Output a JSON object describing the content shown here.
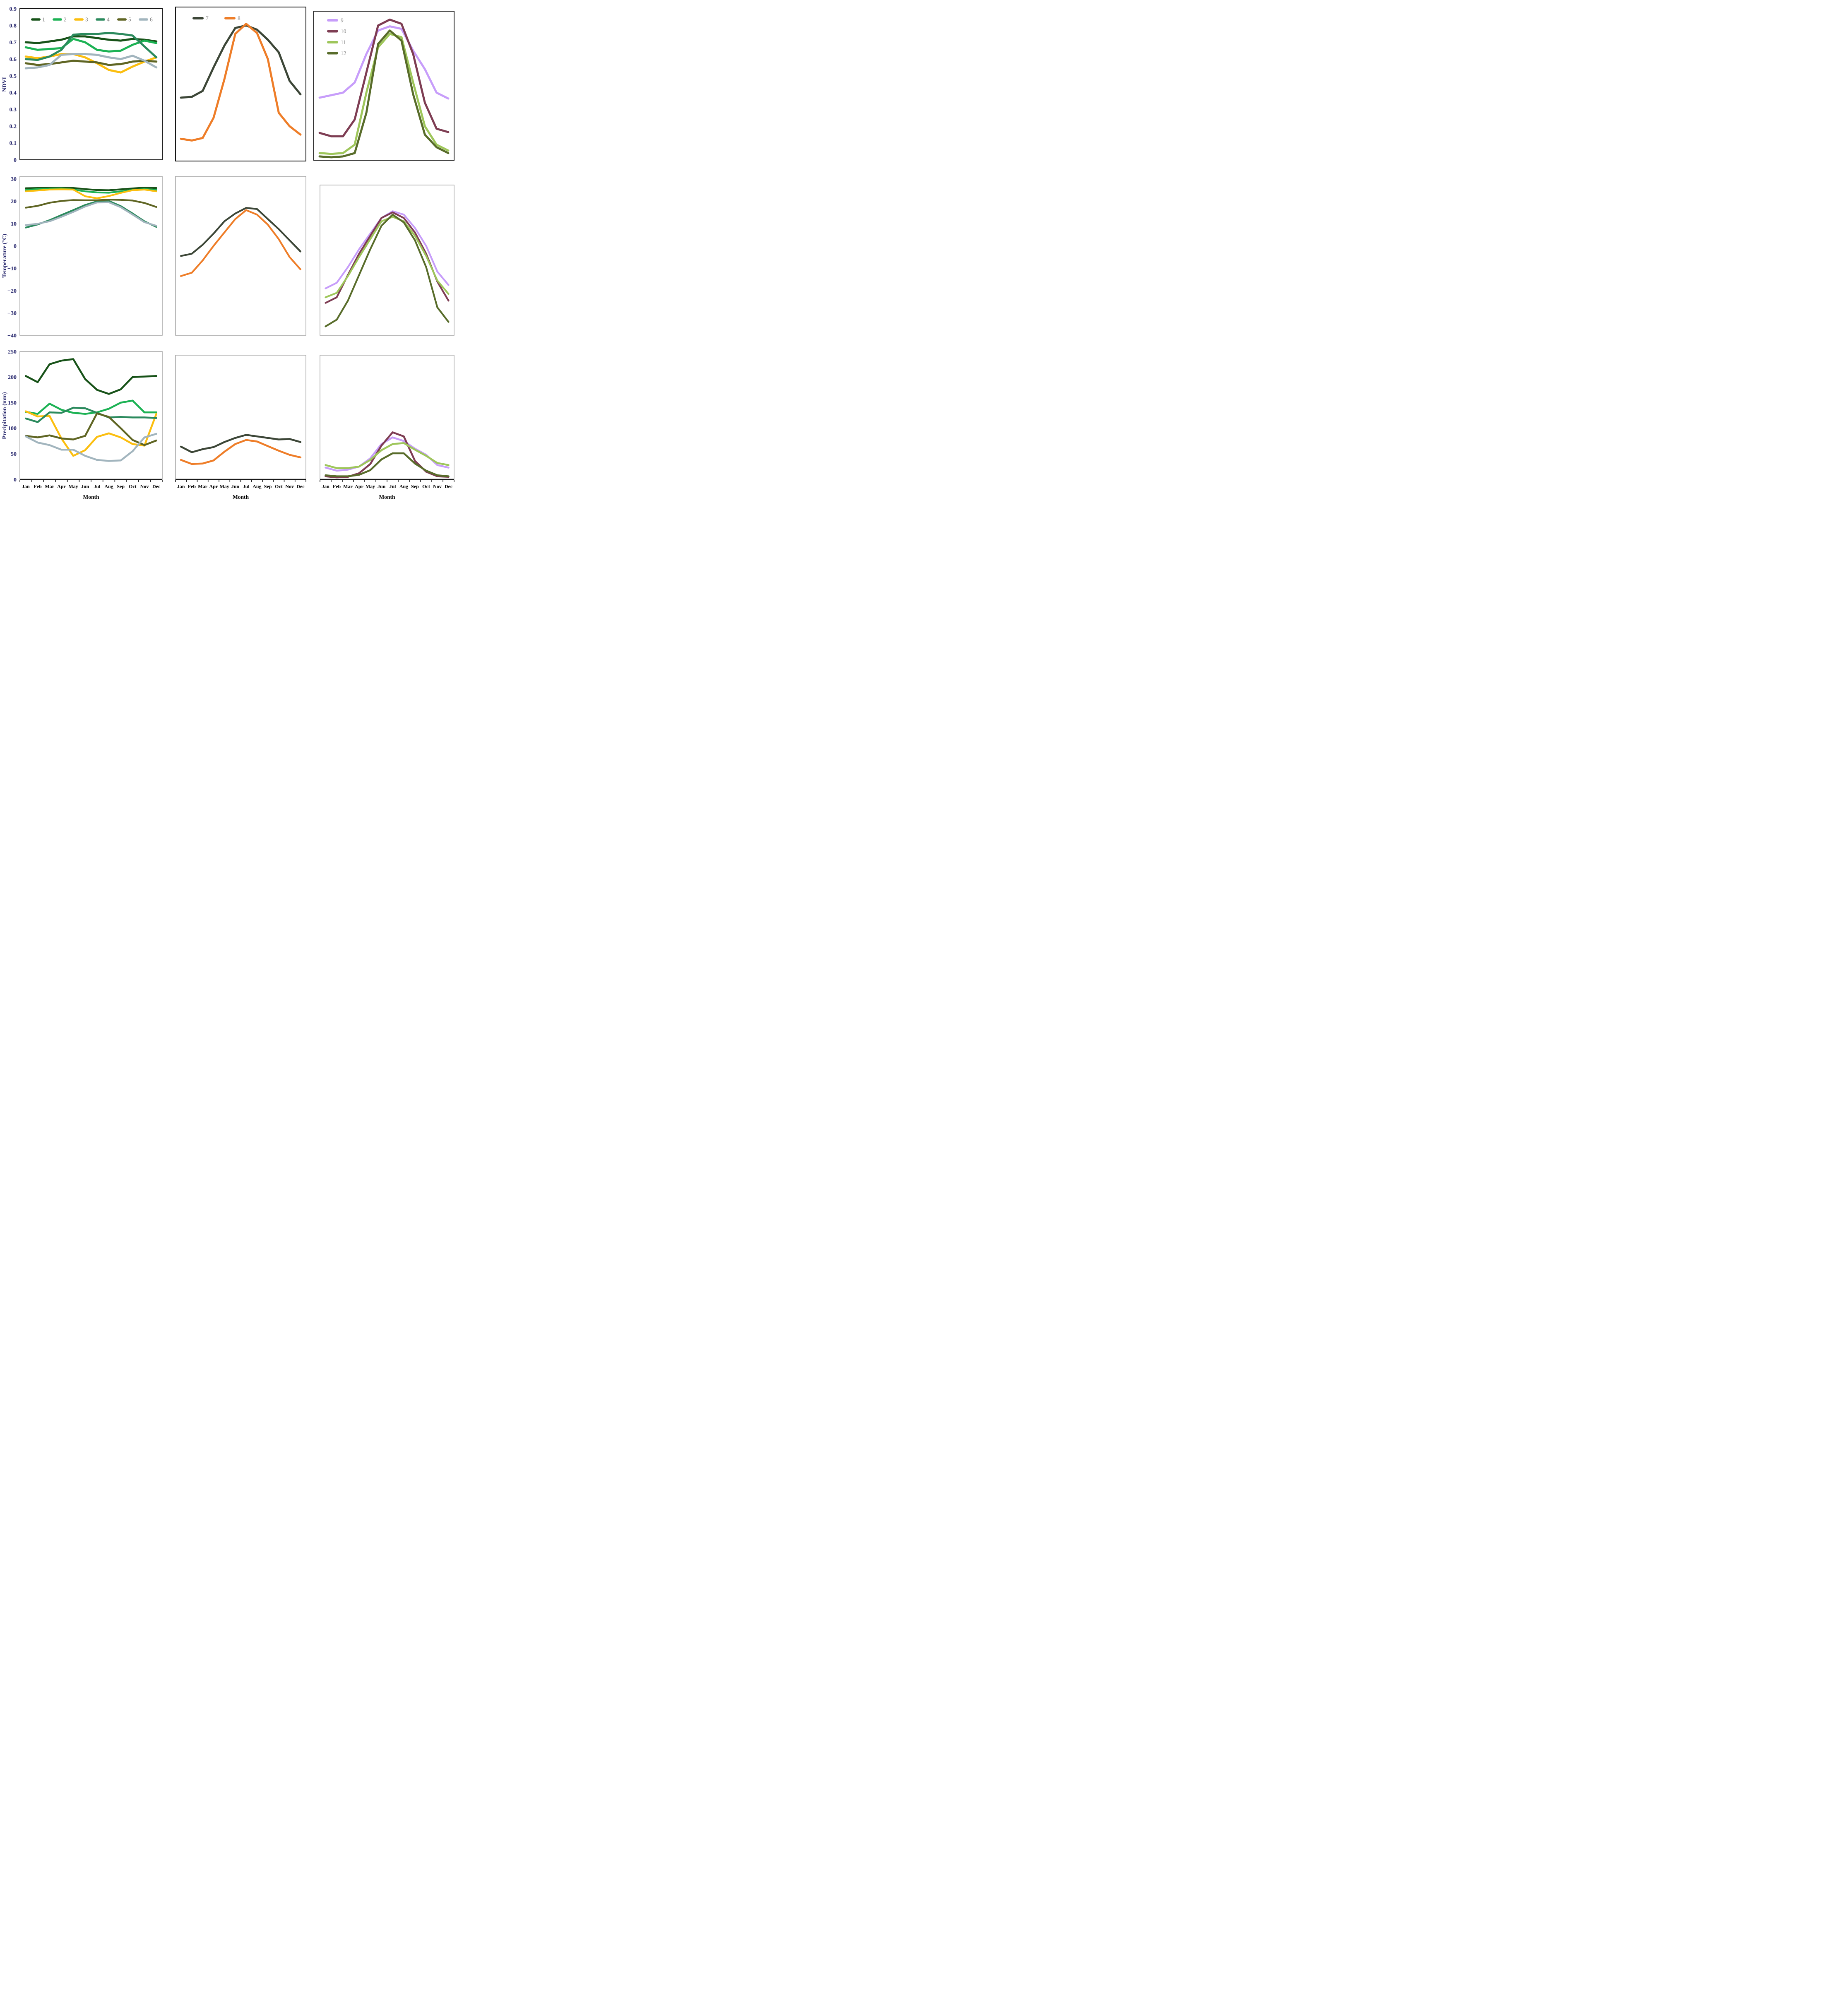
{
  "figure": {
    "x_axis_title": "Month",
    "months": [
      "Jan",
      "Feb",
      "Mar",
      "Apr",
      "May",
      "Jun",
      "Jul",
      "Aug",
      "Sep",
      "Oct",
      "Nov",
      "Dec"
    ],
    "axis_label_color": "#29296e",
    "month_label_color": "#000000",
    "legend_text_color": "#7f7f7f",
    "row1_border_color": "#141414",
    "row23_border_color": "#a3a3a3",
    "y_axis_titles": [
      "NDVI",
      "Temperature (°C)",
      "Precipitation (mm)"
    ],
    "row1_yticks": [
      {
        "label": "0.9",
        "value": 0.9
      },
      {
        "label": "0.8",
        "value": 0.8
      },
      {
        "label": "0.7",
        "value": 0.7
      },
      {
        "label": "0.6",
        "value": 0.6
      },
      {
        "label": "0.5",
        "value": 0.5
      },
      {
        "label": "0.4",
        "value": 0.4
      },
      {
        "label": "0.3",
        "value": 0.3
      },
      {
        "label": "0.2",
        "value": 0.2
      },
      {
        "label": "0.1",
        "value": 0.1
      },
      {
        "label": "0",
        "value": 0
      }
    ],
    "row2_yticks": [
      {
        "label": "30",
        "value": 30
      },
      {
        "label": "20",
        "value": 20
      },
      {
        "label": "10",
        "value": 10
      },
      {
        "label": "0",
        "value": 0
      },
      {
        "label": "−10",
        "value": -10
      },
      {
        "label": "−20",
        "value": -20
      },
      {
        "label": "−30",
        "value": -30
      },
      {
        "label": "−40",
        "value": -40
      }
    ],
    "row3_yticks": [
      {
        "label": "250",
        "value": 250
      },
      {
        "label": "200",
        "value": 200
      },
      {
        "label": "150",
        "value": 150
      },
      {
        "label": "100",
        "value": 100
      },
      {
        "label": "50",
        "value": 50
      },
      {
        "label": "0",
        "value": 0
      }
    ]
  },
  "chart_data": [
    {
      "id": "ndvi-left",
      "type": "line",
      "row": 1,
      "col": 1,
      "ylabel": "NDVI",
      "ylim": [
        0,
        0.9
      ],
      "legend": {
        "orientation": "horizontal",
        "position": "top-inside"
      },
      "series": [
        {
          "name": "1",
          "color": "#175218",
          "values": [
            0.7,
            0.695,
            0.705,
            0.715,
            0.735,
            0.735,
            0.725,
            0.715,
            0.71,
            0.72,
            0.715,
            0.705
          ]
        },
        {
          "name": "2",
          "color": "#1cb254",
          "values": [
            0.67,
            0.655,
            0.66,
            0.665,
            0.72,
            0.7,
            0.655,
            0.645,
            0.65,
            0.685,
            0.71,
            0.695
          ]
        },
        {
          "name": "3",
          "color": "#fbbe0f",
          "values": [
            0.615,
            0.605,
            0.615,
            0.63,
            0.63,
            0.61,
            0.575,
            0.535,
            0.52,
            0.555,
            0.585,
            0.61
          ]
        },
        {
          "name": "4",
          "color": "#2b8a5d",
          "values": [
            0.6,
            0.595,
            0.615,
            0.655,
            0.745,
            0.75,
            0.75,
            0.755,
            0.75,
            0.74,
            0.675,
            0.61
          ]
        },
        {
          "name": "5",
          "color": "#5f6523",
          "values": [
            0.575,
            0.565,
            0.57,
            0.58,
            0.59,
            0.585,
            0.58,
            0.565,
            0.57,
            0.585,
            0.59,
            0.585
          ]
        },
        {
          "name": "6",
          "color": "#a2b5be",
          "values": [
            0.545,
            0.55,
            0.565,
            0.625,
            0.63,
            0.63,
            0.625,
            0.61,
            0.6,
            0.62,
            0.59,
            0.55
          ]
        }
      ]
    },
    {
      "id": "ndvi-mid",
      "type": "line",
      "row": 1,
      "col": 2,
      "ylabel": "",
      "ylim": [
        0,
        0.9
      ],
      "legend": {
        "orientation": "horizontal",
        "position": "top-inside"
      },
      "series": [
        {
          "name": "7",
          "color": "#3c4637",
          "values": [
            0.37,
            0.375,
            0.41,
            0.55,
            0.68,
            0.785,
            0.8,
            0.775,
            0.715,
            0.64,
            0.47,
            0.39
          ]
        },
        {
          "name": "8",
          "color": "#ee7d28",
          "values": [
            0.125,
            0.115,
            0.13,
            0.25,
            0.48,
            0.75,
            0.81,
            0.755,
            0.6,
            0.28,
            0.2,
            0.15
          ]
        }
      ]
    },
    {
      "id": "ndvi-right",
      "type": "line",
      "row": 1,
      "col": 3,
      "ylabel": "",
      "ylim": [
        0,
        0.9
      ],
      "legend": {
        "orientation": "vertical",
        "position": "top-left-inside"
      },
      "series": [
        {
          "name": "9",
          "color": "#c79dfa",
          "values": [
            0.37,
            0.385,
            0.4,
            0.46,
            0.63,
            0.77,
            0.795,
            0.78,
            0.65,
            0.54,
            0.4,
            0.365
          ]
        },
        {
          "name": "10",
          "color": "#7e3d53",
          "values": [
            0.16,
            0.14,
            0.14,
            0.24,
            0.52,
            0.8,
            0.835,
            0.81,
            0.63,
            0.34,
            0.185,
            0.165
          ]
        },
        {
          "name": "11",
          "color": "#9ec65a",
          "values": [
            0.04,
            0.035,
            0.04,
            0.09,
            0.4,
            0.67,
            0.75,
            0.73,
            0.46,
            0.2,
            0.09,
            0.055
          ]
        },
        {
          "name": "12",
          "color": "#586c2a",
          "values": [
            0.02,
            0.015,
            0.02,
            0.04,
            0.28,
            0.69,
            0.77,
            0.71,
            0.39,
            0.15,
            0.075,
            0.04
          ]
        }
      ]
    },
    {
      "id": "temp-left",
      "type": "line",
      "row": 2,
      "col": 1,
      "ylabel": "Temperature (°C)",
      "ylim": [
        -40,
        30
      ],
      "legend": null,
      "series": [
        {
          "name": "1",
          "color": "#175218",
          "values": [
            25.8,
            25.9,
            26.0,
            26.1,
            25.9,
            25.4,
            25.0,
            24.9,
            25.3,
            25.7,
            26.1,
            25.9
          ]
        },
        {
          "name": "2",
          "color": "#1cb254",
          "values": [
            25.0,
            25.4,
            25.6,
            25.7,
            25.2,
            24.4,
            23.9,
            23.8,
            24.4,
            25.0,
            25.4,
            25.1
          ]
        },
        {
          "name": "3",
          "color": "#fbbe0f",
          "values": [
            24.4,
            24.8,
            25.2,
            25.3,
            25.2,
            22.2,
            21.3,
            22.3,
            23.7,
            24.9,
            25.2,
            24.4
          ]
        },
        {
          "name": "4",
          "color": "#2b8a5d",
          "values": [
            8.2,
            9.6,
            11.5,
            13.8,
            16.0,
            18.3,
            19.9,
            20.1,
            17.8,
            14.5,
            11.0,
            8.5
          ]
        },
        {
          "name": "5",
          "color": "#5f6523",
          "values": [
            17.1,
            17.9,
            19.3,
            20.1,
            20.5,
            20.4,
            20.4,
            20.7,
            20.6,
            20.3,
            19.2,
            17.4
          ]
        },
        {
          "name": "6",
          "color": "#a2b5be",
          "values": [
            9.3,
            9.9,
            11.0,
            13.0,
            15.2,
            17.6,
            19.4,
            19.5,
            17.3,
            14.0,
            10.6,
            9.0
          ]
        }
      ]
    },
    {
      "id": "temp-mid",
      "type": "line",
      "row": 2,
      "col": 2,
      "ylabel": "",
      "ylim": [
        -40,
        30
      ],
      "legend": null,
      "series": [
        {
          "name": "7",
          "color": "#3c4637",
          "values": [
            -4.5,
            -3.5,
            0.5,
            5.5,
            11,
            14.5,
            17,
            16.5,
            12,
            7.5,
            2.5,
            -2.5
          ]
        },
        {
          "name": "8",
          "color": "#ee7d28",
          "values": [
            -13.5,
            -12,
            -6.5,
            0,
            6,
            12,
            16,
            14,
            9.5,
            3,
            -5,
            -10.5
          ]
        }
      ]
    },
    {
      "id": "temp-right",
      "type": "line",
      "row": 2,
      "col": 3,
      "ylabel": "",
      "ylim": [
        -40,
        30
      ],
      "legend": null,
      "series": [
        {
          "name": "9",
          "color": "#c79dfa",
          "values": [
            -19,
            -16.5,
            -9.5,
            -1.5,
            5.5,
            12.5,
            15.5,
            14,
            8,
            0,
            -11.5,
            -17.5
          ]
        },
        {
          "name": "10",
          "color": "#7e3d53",
          "values": [
            -25.5,
            -23,
            -13,
            -3.5,
            4.5,
            12.5,
            15,
            12.5,
            6,
            -3.5,
            -16,
            -24.5
          ]
        },
        {
          "name": "11",
          "color": "#9ec65a",
          "values": [
            -23,
            -21,
            -13.5,
            -5,
            3,
            11,
            13,
            11,
            4.5,
            -4.5,
            -15.5,
            -21.5
          ]
        },
        {
          "name": "12",
          "color": "#586c2a",
          "values": [
            -36,
            -33,
            -24.5,
            -13,
            -1.5,
            9,
            14,
            10.5,
            2.5,
            -9.5,
            -27.5,
            -34
          ]
        }
      ]
    },
    {
      "id": "precip-left",
      "type": "line",
      "row": 3,
      "col": 1,
      "ylabel": "Precipitation (mm)",
      "ylim": [
        0,
        250
      ],
      "legend": null,
      "series": [
        {
          "name": "1",
          "color": "#175218",
          "values": [
            202,
            190,
            225,
            232,
            235,
            196,
            175,
            167,
            176,
            200,
            201,
            202
          ]
        },
        {
          "name": "2",
          "color": "#1cb254",
          "values": [
            132,
            128,
            148,
            136,
            130,
            128,
            131,
            138,
            150,
            154,
            131,
            131
          ]
        },
        {
          "name": "3",
          "color": "#fbbe0f",
          "values": [
            133,
            123,
            124,
            80,
            46,
            57,
            83,
            90,
            82,
            69,
            66,
            128
          ]
        },
        {
          "name": "4",
          "color": "#2b8a5d",
          "values": [
            119,
            112,
            131,
            130,
            140,
            139,
            130,
            121,
            122,
            121,
            121,
            120
          ]
        },
        {
          "name": "5",
          "color": "#5f6523",
          "values": [
            85,
            82,
            86,
            80,
            78,
            85,
            129,
            122,
            100,
            77,
            67,
            76
          ]
        },
        {
          "name": "6",
          "color": "#a2b5be",
          "values": [
            84,
            72,
            67,
            58,
            58,
            46,
            38,
            36,
            37,
            55,
            82,
            89
          ]
        }
      ]
    },
    {
      "id": "precip-mid",
      "type": "line",
      "row": 3,
      "col": 2,
      "ylabel": "",
      "ylim": [
        0,
        250
      ],
      "legend": null,
      "series": [
        {
          "name": "7",
          "color": "#3c4637",
          "values": [
            64,
            53,
            59,
            63,
            73,
            81,
            87,
            84,
            81,
            78,
            79,
            73
          ]
        },
        {
          "name": "8",
          "color": "#ee7d28",
          "values": [
            38,
            30,
            31,
            37,
            54,
            69,
            77,
            74,
            65,
            56,
            48,
            43
          ]
        }
      ]
    },
    {
      "id": "precip-right",
      "type": "line",
      "row": 3,
      "col": 3,
      "ylabel": "",
      "ylim": [
        0,
        250
      ],
      "legend": null,
      "series": [
        {
          "name": "9",
          "color": "#c79dfa",
          "values": [
            23,
            17,
            19,
            25,
            41,
            69,
            82,
            75,
            60,
            48,
            28,
            23
          ]
        },
        {
          "name": "10",
          "color": "#7e3d53",
          "values": [
            6,
            4,
            5,
            12,
            30,
            66,
            92,
            84,
            36,
            15,
            6,
            5
          ]
        },
        {
          "name": "11",
          "color": "#9ec65a",
          "values": [
            28,
            22,
            22,
            25,
            38,
            57,
            69,
            71,
            58,
            46,
            32,
            28
          ]
        },
        {
          "name": "12",
          "color": "#586c2a",
          "values": [
            8,
            6,
            6,
            9,
            18,
            39,
            51,
            51,
            31,
            17,
            8,
            6
          ]
        }
      ]
    }
  ]
}
